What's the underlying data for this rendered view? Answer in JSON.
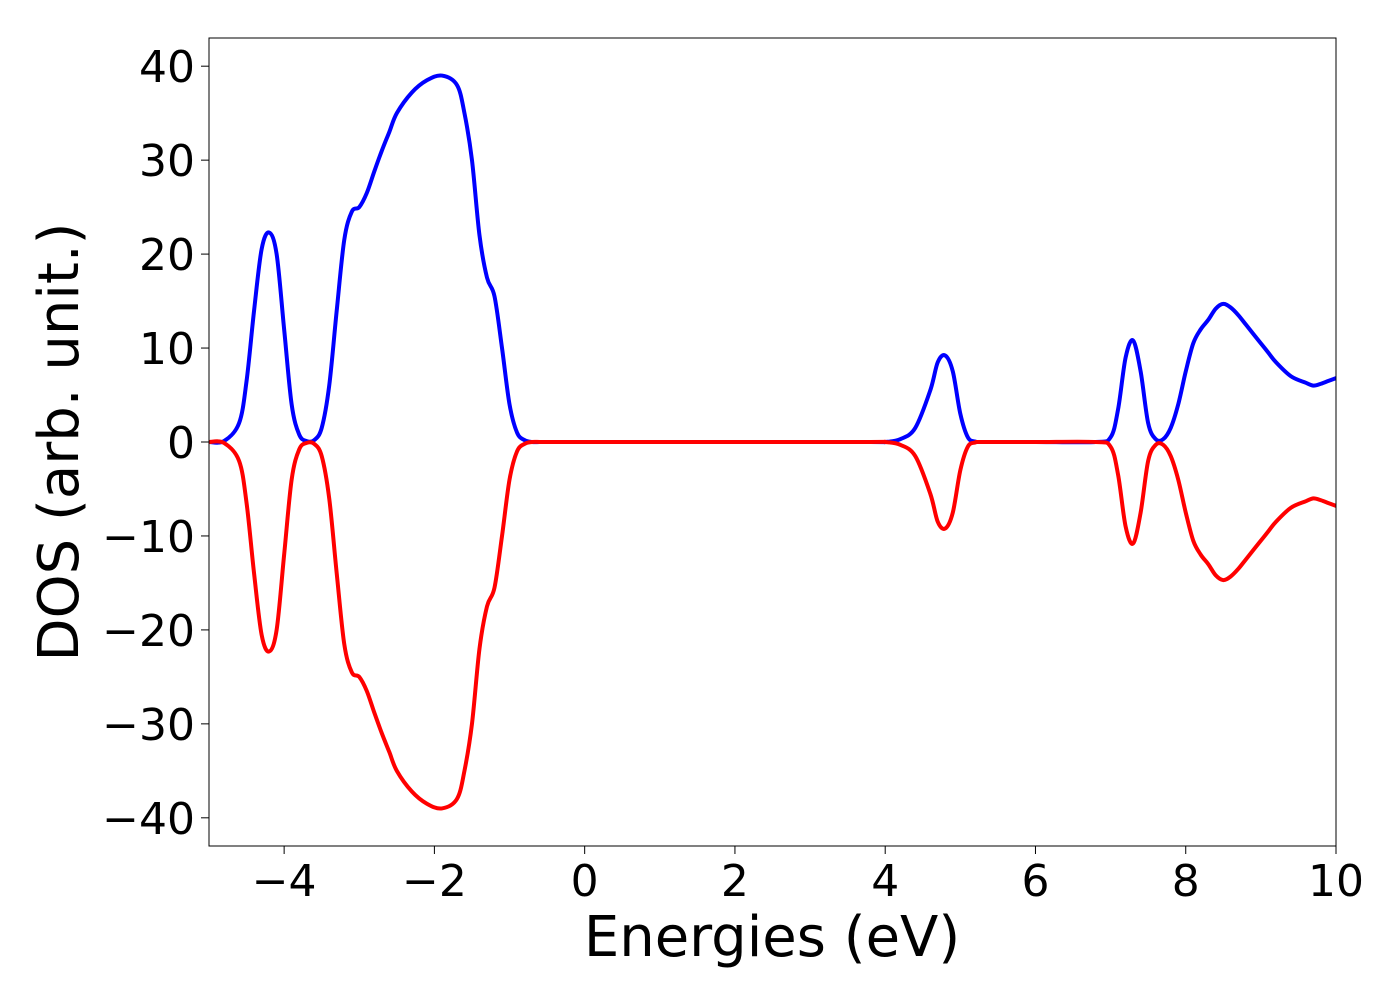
{
  "chart_data": {
    "type": "line",
    "title": "",
    "xlabel": "Energies (eV)",
    "ylabel": "DOS (arb. unit.)",
    "xlim": [
      -5,
      10
    ],
    "ylim": [
      -43,
      43
    ],
    "x_ticks": [
      -4,
      -2,
      0,
      2,
      4,
      6,
      8,
      10
    ],
    "x_tick_labels": [
      "−4",
      "−2",
      "0",
      "2",
      "4",
      "6",
      "8",
      "10"
    ],
    "y_ticks": [
      40,
      30,
      20,
      10,
      0,
      -10,
      -20,
      -30,
      -40
    ],
    "y_tick_labels": [
      "40",
      "30",
      "20",
      "10",
      "0",
      "−10",
      "−20",
      "−30",
      "−40"
    ],
    "grid": false,
    "legend": "none",
    "series": [
      {
        "color": "#0000ff",
        "x": [
          -5.0,
          -4.8,
          -4.6,
          -4.5,
          -4.4,
          -4.3,
          -4.2,
          -4.1,
          -4.0,
          -3.9,
          -3.8,
          -3.7,
          -3.6,
          -3.5,
          -3.4,
          -3.3,
          -3.2,
          -3.1,
          -3.0,
          -2.9,
          -2.8,
          -2.7,
          -2.6,
          -2.5,
          -2.3,
          -2.1,
          -1.9,
          -1.7,
          -1.6,
          -1.5,
          -1.4,
          -1.3,
          -1.2,
          -1.1,
          -1.0,
          -0.9,
          -0.8,
          -0.7,
          -0.6,
          -0.5,
          0.0,
          2.0,
          3.8,
          4.0,
          4.2,
          4.4,
          4.6,
          4.7,
          4.8,
          4.9,
          5.0,
          5.1,
          5.2,
          5.3,
          6.0,
          6.8,
          7.0,
          7.1,
          7.2,
          7.3,
          7.4,
          7.5,
          7.6,
          7.7,
          7.8,
          7.9,
          8.0,
          8.1,
          8.2,
          8.3,
          8.4,
          8.5,
          8.6,
          8.7,
          8.8,
          8.9,
          9.0,
          9.1,
          9.2,
          9.4,
          9.6,
          9.7,
          9.8,
          9.9,
          10.0
        ],
        "y": [
          0.0,
          0.1,
          2.0,
          6.5,
          14.0,
          20.5,
          22.3,
          20.0,
          12.0,
          4.0,
          0.8,
          0.1,
          0.2,
          1.5,
          6.0,
          14.0,
          21.5,
          24.5,
          25.0,
          26.5,
          28.8,
          31.0,
          33.0,
          35.0,
          37.2,
          38.5,
          39.0,
          38.0,
          35.0,
          30.0,
          22.0,
          17.5,
          15.5,
          10.0,
          4.0,
          1.0,
          0.2,
          0.0,
          0.0,
          0.0,
          0.0,
          0.0,
          0.0,
          0.0,
          0.3,
          1.5,
          5.5,
          8.5,
          9.2,
          7.5,
          3.0,
          0.5,
          0.05,
          0.0,
          0.0,
          0.0,
          0.5,
          3.5,
          9.0,
          10.8,
          7.5,
          2.0,
          0.3,
          0.3,
          1.5,
          4.0,
          7.5,
          10.5,
          12.0,
          13.0,
          14.2,
          14.7,
          14.3,
          13.5,
          12.5,
          11.5,
          10.5,
          9.5,
          8.5,
          7.0,
          6.3,
          6.0,
          6.2,
          6.5,
          6.8
        ]
      },
      {
        "color": "#ff0000",
        "x": [
          -5.0,
          -4.8,
          -4.6,
          -4.5,
          -4.4,
          -4.3,
          -4.2,
          -4.1,
          -4.0,
          -3.9,
          -3.8,
          -3.7,
          -3.6,
          -3.5,
          -3.4,
          -3.3,
          -3.2,
          -3.1,
          -3.0,
          -2.9,
          -2.8,
          -2.7,
          -2.6,
          -2.5,
          -2.3,
          -2.1,
          -1.9,
          -1.7,
          -1.6,
          -1.5,
          -1.4,
          -1.3,
          -1.2,
          -1.1,
          -1.0,
          -0.9,
          -0.8,
          -0.7,
          -0.6,
          -0.5,
          0.0,
          2.0,
          3.8,
          4.0,
          4.2,
          4.4,
          4.6,
          4.7,
          4.8,
          4.9,
          5.0,
          5.1,
          5.2,
          5.3,
          6.0,
          6.8,
          7.0,
          7.1,
          7.2,
          7.3,
          7.4,
          7.5,
          7.6,
          7.7,
          7.8,
          7.9,
          8.0,
          8.1,
          8.2,
          8.3,
          8.4,
          8.5,
          8.6,
          8.7,
          8.8,
          8.9,
          9.0,
          9.1,
          9.2,
          9.4,
          9.6,
          9.7,
          9.8,
          9.9,
          10.0
        ],
        "y": [
          0.0,
          -0.1,
          -2.0,
          -6.5,
          -14.0,
          -20.5,
          -22.3,
          -20.0,
          -12.0,
          -4.0,
          -0.8,
          -0.1,
          -0.2,
          -1.5,
          -6.0,
          -14.0,
          -21.5,
          -24.5,
          -25.0,
          -26.5,
          -28.8,
          -31.0,
          -33.0,
          -35.0,
          -37.2,
          -38.5,
          -39.0,
          -38.0,
          -35.0,
          -30.0,
          -22.0,
          -17.5,
          -15.5,
          -10.0,
          -4.0,
          -1.0,
          -0.2,
          0.0,
          0.0,
          0.0,
          0.0,
          0.0,
          0.0,
          0.0,
          -0.3,
          -1.5,
          -5.5,
          -8.5,
          -9.2,
          -7.5,
          -3.0,
          -0.5,
          -0.05,
          0.0,
          0.0,
          0.0,
          -0.5,
          -3.5,
          -9.0,
          -10.8,
          -7.5,
          -2.0,
          -0.3,
          -0.3,
          -1.5,
          -4.0,
          -7.5,
          -10.5,
          -12.0,
          -13.0,
          -14.2,
          -14.7,
          -14.3,
          -13.5,
          -12.5,
          -11.5,
          -10.5,
          -9.5,
          -8.5,
          -7.0,
          -6.3,
          -6.0,
          -6.2,
          -6.5,
          -6.8
        ]
      }
    ]
  }
}
